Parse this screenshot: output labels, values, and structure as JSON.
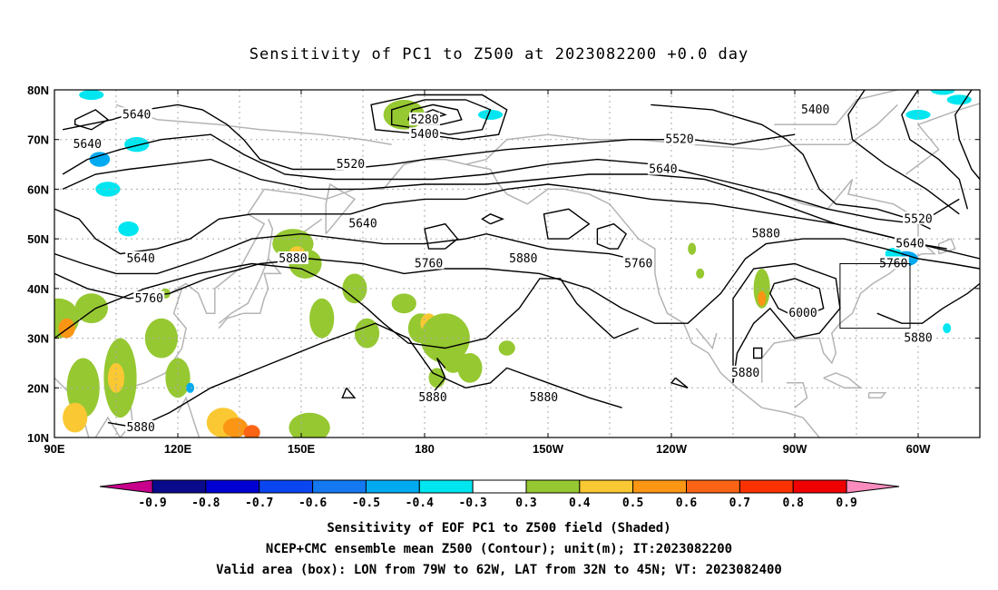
{
  "title": "Sensitivity of PC1 to Z500 at 2023082200 +0.0 day",
  "map": {
    "lon_ticks": [
      "90E",
      "120E",
      "150E",
      "180",
      "150W",
      "120W",
      "90W",
      "60W"
    ],
    "lat_ticks": [
      "80N",
      "70N",
      "60N",
      "50N",
      "40N",
      "30N",
      "20N",
      "10N"
    ],
    "extent": {
      "lon_min": 90,
      "lon_max": 315,
      "lat_min": 10,
      "lat_max": 80
    },
    "valid_box": {
      "lon_west": "79W",
      "lon_east": "62W",
      "lat_south": "32N",
      "lat_north": "45N"
    }
  },
  "contour_labels": [
    {
      "text": "5640",
      "lon": 110,
      "lat": 75
    },
    {
      "text": "5640",
      "lon": 98,
      "lat": 69
    },
    {
      "text": "5280",
      "lon": 180,
      "lat": 74
    },
    {
      "text": "5400",
      "lon": 180,
      "lat": 71
    },
    {
      "text": "5520",
      "lon": 162,
      "lat": 65
    },
    {
      "text": "5640",
      "lon": 165,
      "lat": 53
    },
    {
      "text": "5640",
      "lon": 111,
      "lat": 46
    },
    {
      "text": "5880",
      "lon": 148,
      "lat": 46
    },
    {
      "text": "5760",
      "lon": 181,
      "lat": 45
    },
    {
      "text": "5880",
      "lon": 204,
      "lat": 46
    },
    {
      "text": "5760",
      "lon": 232,
      "lat": 45
    },
    {
      "text": "5760",
      "lon": 113,
      "lat": 38
    },
    {
      "text": "5880",
      "lon": 111,
      "lat": 12
    },
    {
      "text": "5880",
      "lon": 182,
      "lat": 18
    },
    {
      "text": "5880",
      "lon": 209,
      "lat": 18
    },
    {
      "text": "5400",
      "lon": 275,
      "lat": 76
    },
    {
      "text": "5520",
      "lon": 242,
      "lat": 70
    },
    {
      "text": "5640",
      "lon": 238,
      "lat": 64
    },
    {
      "text": "5520",
      "lon": 300,
      "lat": 54
    },
    {
      "text": "5880",
      "lon": 263,
      "lat": 51
    },
    {
      "text": "5640",
      "lon": 298,
      "lat": 49
    },
    {
      "text": "5760",
      "lon": 294,
      "lat": 45
    },
    {
      "text": "6000",
      "lon": 272,
      "lat": 35
    },
    {
      "text": "5880",
      "lon": 300,
      "lat": 30
    },
    {
      "text": "5880",
      "lon": 258,
      "lat": 23
    }
  ],
  "colorbar": {
    "ticks": [
      "-0.9",
      "-0.8",
      "-0.7",
      "-0.6",
      "-0.5",
      "-0.4",
      "-0.3",
      "0.3",
      "0.4",
      "0.5",
      "0.6",
      "0.7",
      "0.8",
      "0.9"
    ],
    "colors": [
      "#c8008c",
      "#0a0a8c",
      "#0000d2",
      "#0a46f0",
      "#1478f0",
      "#00aaf0",
      "#00e6f0",
      "#ffffff",
      "#96c832",
      "#fac832",
      "#fa9614",
      "#fa6414",
      "#fa3200",
      "#f00000",
      "#fa8cbe"
    ]
  },
  "captions": {
    "line1": "Sensitivity of EOF PC1 to Z500 field (Shaded)",
    "line2": "NCEP+CMC ensemble mean Z500 (Contour); unit(m); IT:2023082200",
    "line3": "Valid area (box): LON from 79W to 62W, LAT from 32N to 45N; VT: 2023082400"
  }
}
